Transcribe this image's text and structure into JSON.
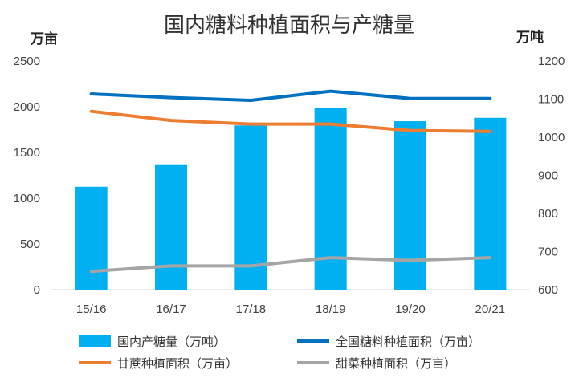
{
  "chart_data": {
    "type": "bar",
    "title": "国内糖料种植面积与产糖量",
    "left_unit": "万亩",
    "right_unit": "万吨",
    "categories": [
      "15/16",
      "16/17",
      "17/18",
      "18/19",
      "19/20",
      "20/21"
    ],
    "y_left": {
      "min": 0,
      "max": 2500,
      "ticks": [
        "0",
        "500",
        "1000",
        "1500",
        "2000",
        "2500"
      ]
    },
    "y_right": {
      "min": 600,
      "max": 1200,
      "ticks": [
        "600",
        "700",
        "800",
        "900",
        "1000",
        "1100",
        "1200"
      ]
    },
    "grid": false,
    "legend_position": "bottom",
    "bars": {
      "name": "国内产糖量（万吨）",
      "axis": "right",
      "color": "#00B0F0",
      "values": [
        870,
        929,
        1031,
        1076,
        1042,
        1051
      ]
    },
    "lines": [
      {
        "name": "全国糖料种植面积（万亩）",
        "axis": "left",
        "color": "#0070C0",
        "values": [
          2140,
          2100,
          2070,
          2170,
          2090,
          2090
        ]
      },
      {
        "name": "甘蔗种植面积（万亩）",
        "axis": "left",
        "color": "#ED7D31",
        "values": [
          1950,
          1850,
          1810,
          1810,
          1740,
          1730
        ]
      },
      {
        "name": "甜菜种植面积（万亩）",
        "axis": "left",
        "color": "#A5A5A5",
        "values": [
          200,
          260,
          260,
          350,
          320,
          350
        ]
      }
    ]
  }
}
